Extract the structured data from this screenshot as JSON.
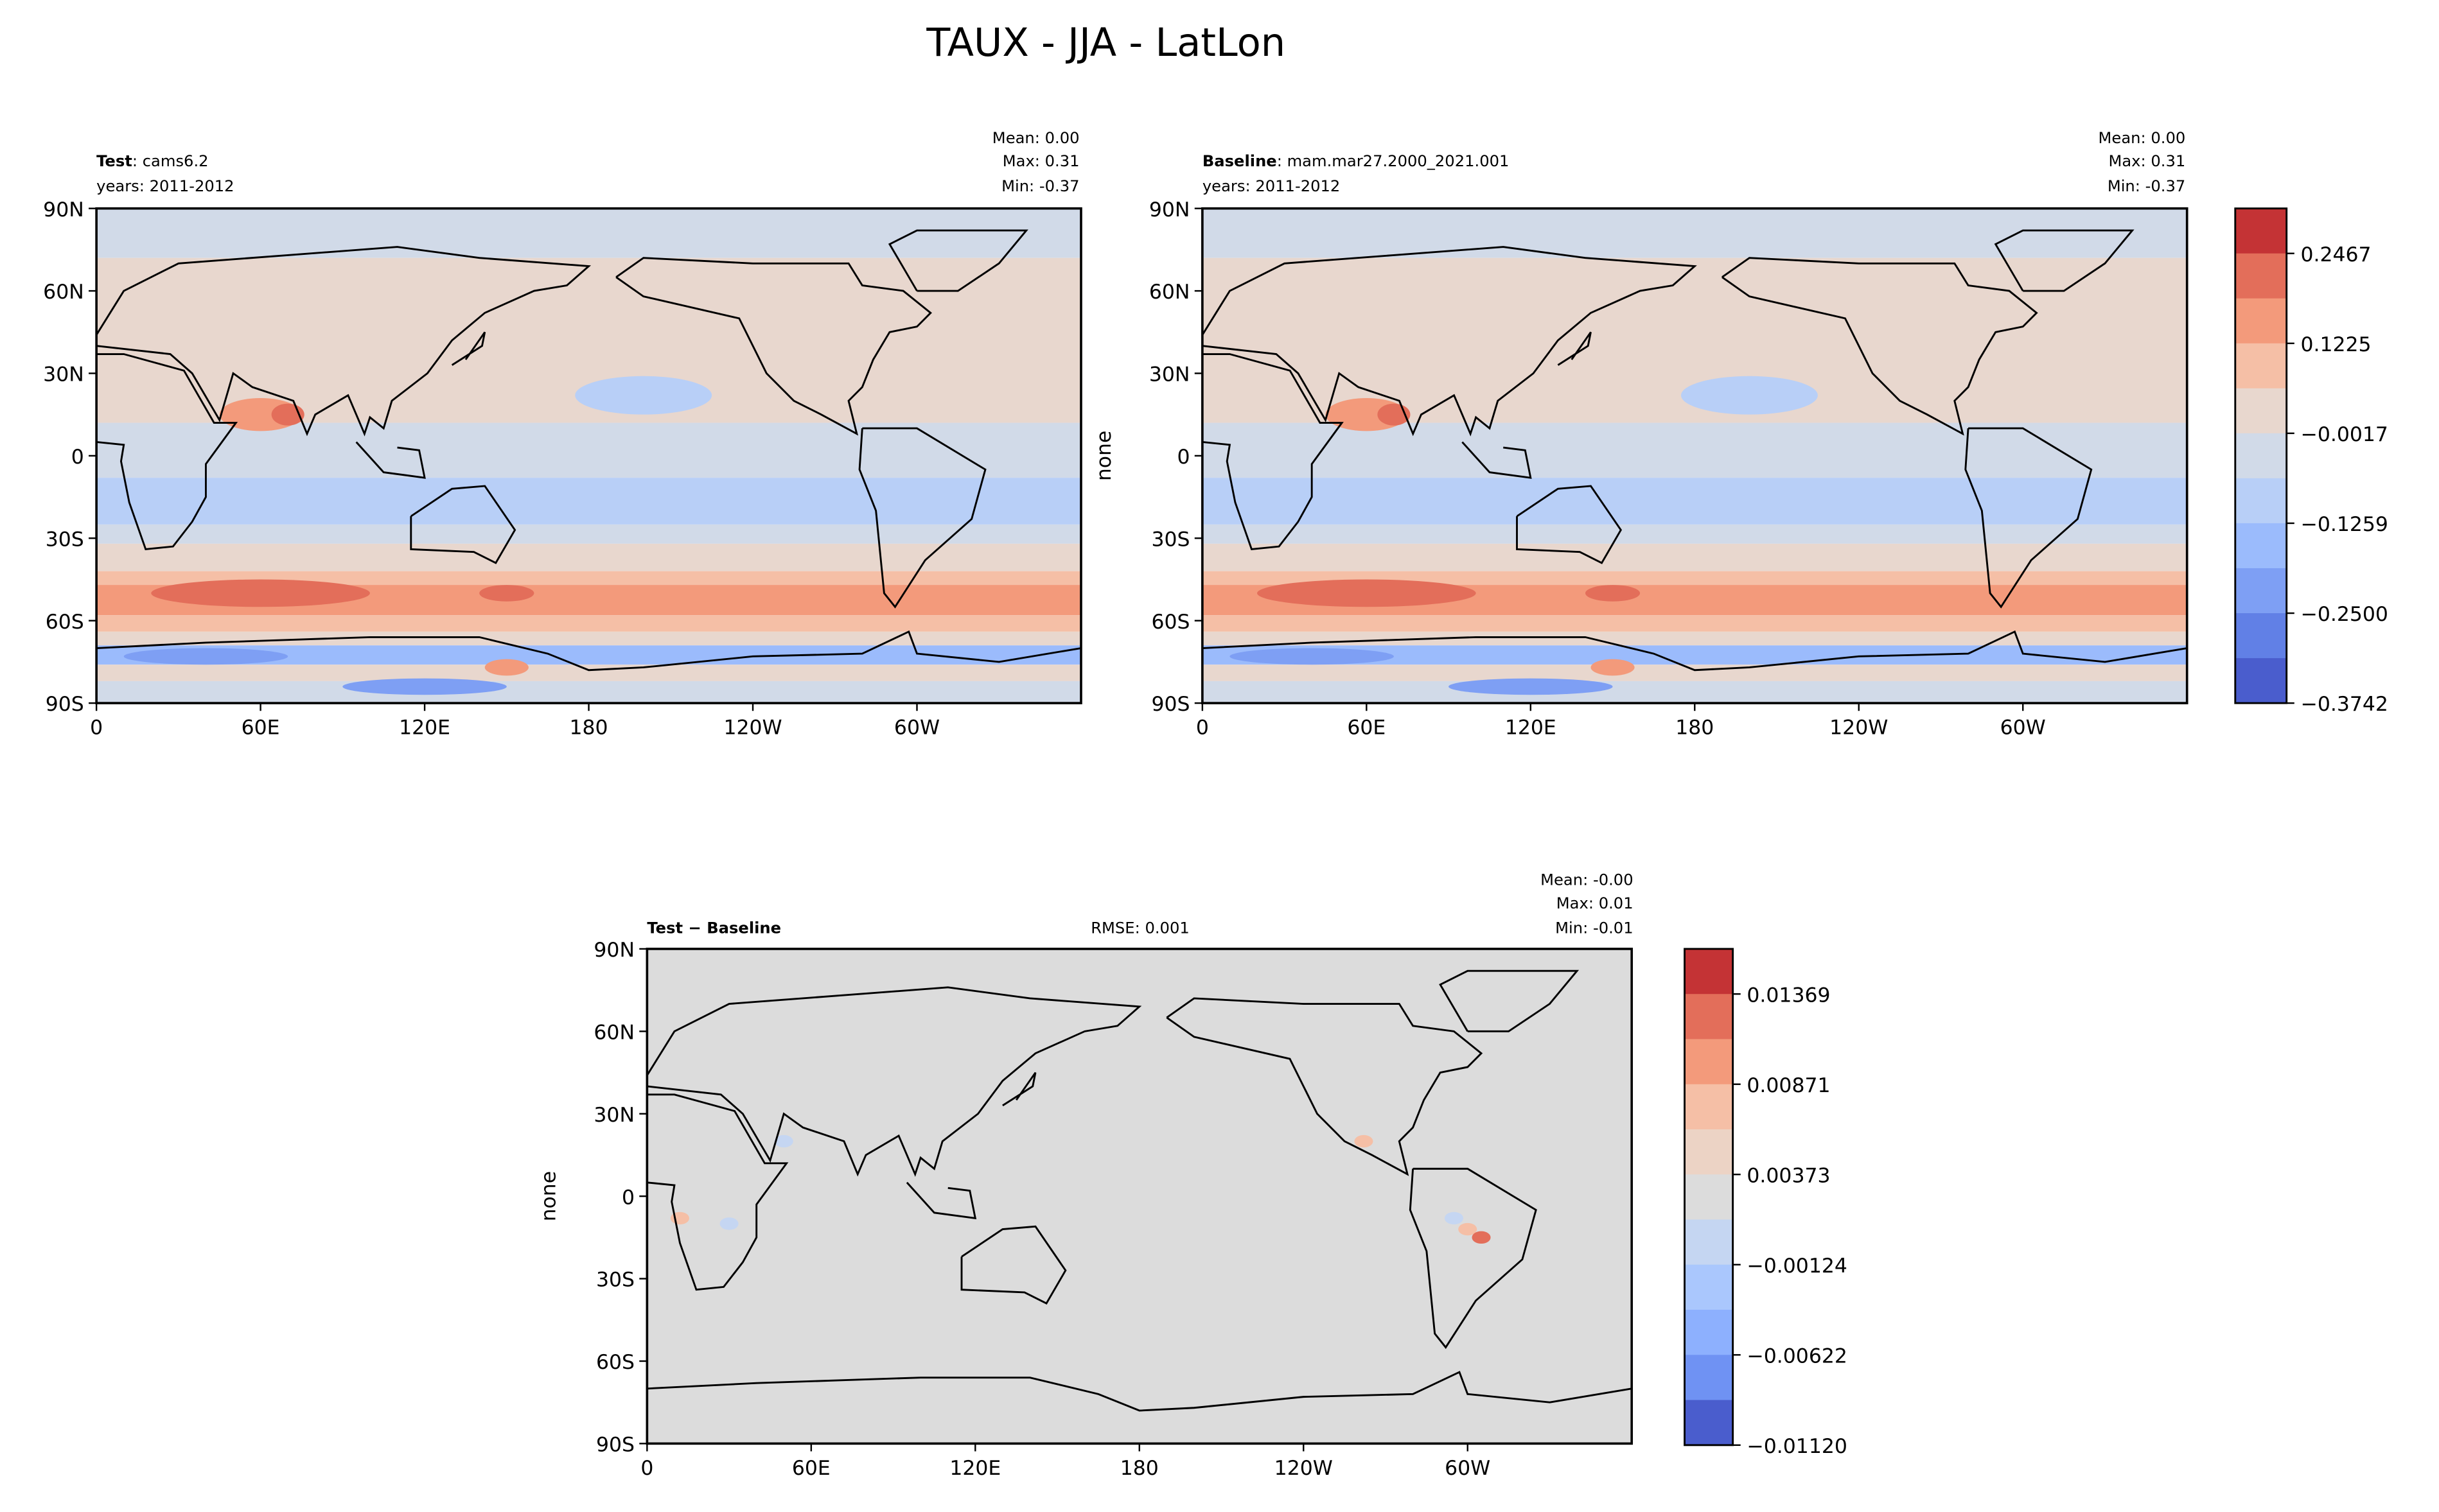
{
  "chart_data": [
    {
      "type": "heatmap",
      "subtype": "filled-contour-map",
      "figure_title": "TAUX - JJA - LatLon",
      "panel": "test",
      "label_bold": "Test",
      "label_rest": ": cams6.2",
      "years": "years: 2011-2012",
      "stats": {
        "mean": "Mean:  0.00",
        "max": "Max:  0.31",
        "min": "Min: -0.37"
      },
      "ylabel": "",
      "xticks": [
        "0",
        "60E",
        "120E",
        "180",
        "120W",
        "60W"
      ],
      "yticks": [
        "90N",
        "60N",
        "30N",
        "0",
        "30S",
        "60S",
        "90S"
      ],
      "xlim": [
        0,
        360
      ],
      "ylim": [
        -90,
        90
      ],
      "zonal_bands": [
        {
          "lat": [
            72,
            90
          ],
          "value": -0.05
        },
        {
          "lat": [
            12,
            72
          ],
          "value": 0.03
        },
        {
          "lat": [
            -8,
            12
          ],
          "value": -0.05
        },
        {
          "lat": [
            -25,
            -8
          ],
          "value": -0.1
        },
        {
          "lat": [
            -32,
            -25
          ],
          "value": -0.05
        },
        {
          "lat": [
            -42,
            -32
          ],
          "value": 0.03
        },
        {
          "lat": [
            -47,
            -42
          ],
          "value": 0.1
        },
        {
          "lat": [
            -58,
            -47
          ],
          "value": 0.16
        },
        {
          "lat": [
            -64,
            -58
          ],
          "value": 0.1
        },
        {
          "lat": [
            -69,
            -64
          ],
          "value": 0.03
        },
        {
          "lat": [
            -76,
            -69
          ],
          "value": -0.15
        },
        {
          "lat": [
            -82,
            -76
          ],
          "value": 0.05
        },
        {
          "lat": [
            -90,
            -82
          ],
          "value": -0.05
        }
      ]
    },
    {
      "type": "heatmap",
      "subtype": "filled-contour-map",
      "panel": "baseline",
      "label_bold": "Baseline",
      "label_rest": ": mam.mar27.2000_2021.001",
      "years": "years: 2011-2012",
      "stats": {
        "mean": "Mean:  0.00",
        "max": "Max:  0.31",
        "min": "Min: -0.37"
      },
      "ylabel": "none",
      "xticks": [
        "0",
        "60E",
        "120E",
        "180",
        "120W",
        "60W"
      ],
      "yticks": [
        "90N",
        "60N",
        "30N",
        "0",
        "30S",
        "60S",
        "90S"
      ],
      "xlim": [
        0,
        360
      ],
      "ylim": [
        -90,
        90
      ],
      "colorbar": {
        "ticks": [
          "0.2467",
          "0.1225",
          "−0.0017",
          "−0.1259",
          "−0.2500",
          "−0.3742"
        ],
        "colors": [
          "#c43335",
          "#e36e5a",
          "#f39a7b",
          "#f5bfa6",
          "#e8d7ce",
          "#d1dae8",
          "#b8cff7",
          "#9bbbfc",
          "#7e9ff4",
          "#6180e6",
          "#4a5dcd"
        ]
      }
    },
    {
      "type": "heatmap",
      "subtype": "filled-contour-map",
      "panel": "difference",
      "label_bold": "Test − Baseline",
      "rmse": "RMSE: 0.001",
      "stats": {
        "mean": "Mean: -0.00",
        "max": "Max:  0.01",
        "min": "Min: -0.01"
      },
      "ylabel": "none",
      "xticks": [
        "0",
        "60E",
        "120E",
        "180",
        "120W",
        "60W"
      ],
      "yticks": [
        "90N",
        "60N",
        "30N",
        "0",
        "30S",
        "60S",
        "90S"
      ],
      "xlim": [
        0,
        360
      ],
      "ylim": [
        -90,
        90
      ],
      "colorbar": {
        "ticks": [
          "0.01369",
          "0.00871",
          "0.00373",
          "−0.00124",
          "−0.00622",
          "−0.01120"
        ],
        "colors": [
          "#c43335",
          "#e36e5a",
          "#f39a7b",
          "#f5bfa6",
          "#ecd3c5",
          "#dcdcdc",
          "#c5d6f2",
          "#aac7fd",
          "#8db0fe",
          "#6f92f3",
          "#4a5dcd"
        ]
      }
    }
  ]
}
